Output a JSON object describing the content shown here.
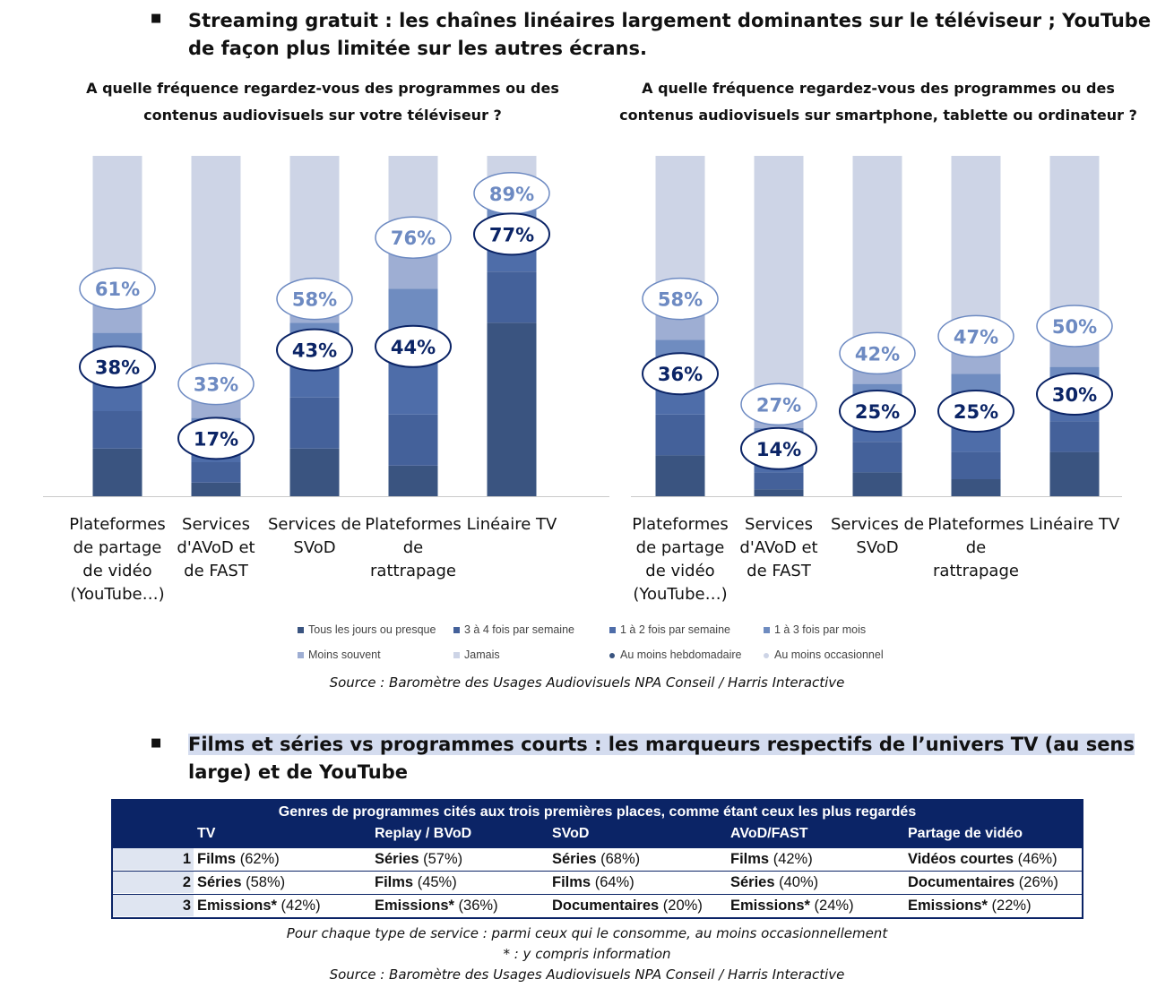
{
  "section1": {
    "heading_line1": "Streaming gratuit : les chaînes linéaires largement dominantes sur le téléviseur ; YouTube",
    "heading_line2": "de façon plus limitée sur les autres écrans."
  },
  "section2": {
    "heading_line1": "Films et séries vs programmes courts : les marqueurs respectifs de l’univers TV (au sens",
    "heading_line2": "large) et de YouTube"
  },
  "colors": {
    "daily": "#3a5480",
    "w34": "#44619a",
    "w12": "#4e6da9",
    "month13": "#6f8cc0",
    "less": "#9eaed3",
    "never": "#cdd4e6",
    "dark_ring": "#0b2466",
    "light_ring": "#6d8ac2"
  },
  "legend": [
    {
      "label": "Tous les jours ou presque",
      "color": "#3a5480",
      "kind": "square"
    },
    {
      "label": "3 à 4 fois par semaine",
      "color": "#44619a",
      "kind": "square"
    },
    {
      "label": "1 à 2 fois par semaine",
      "color": "#4e6da9",
      "kind": "square"
    },
    {
      "label": "1 à 3 fois par mois",
      "color": "#6f8cc0",
      "kind": "square"
    },
    {
      "label": "Moins souvent",
      "color": "#9eaed3",
      "kind": "square"
    },
    {
      "label": "Jamais",
      "color": "#cdd4e6",
      "kind": "square"
    },
    {
      "label": "Au moins hebdomadaire",
      "color": "#3a5480",
      "kind": "dot"
    },
    {
      "label": "Au moins occasionnel",
      "color": "#cdd4e6",
      "kind": "dot"
    }
  ],
  "source1": "Source : Baromètre des Usages Audiovisuels NPA Conseil / Harris Interactive",
  "chart_data": [
    {
      "type": "bar",
      "stacked": true,
      "title_line1": "A quelle fréquence regardez-vous des programmes ou des",
      "title_line2": "contenus audiovisuels sur votre téléviseur ?",
      "categories": [
        [
          "Plateformes",
          "de partage",
          "de vidéo",
          "(YouTube…)"
        ],
        [
          "Services",
          "d'AVoD et",
          "de FAST"
        ],
        [
          "Services de",
          "SVoD"
        ],
        [
          "Plateformes",
          "de",
          "rattrapage"
        ],
        [
          "Linéaire TV"
        ]
      ],
      "series": [
        {
          "name": "Tous les jours ou presque",
          "values": [
            14,
            4,
            14,
            9,
            51
          ]
        },
        {
          "name": "3 à 4 fois par semaine",
          "values": [
            11,
            6,
            15,
            15,
            15
          ]
        },
        {
          "name": "1 à 2 fois par semaine",
          "values": [
            13,
            7,
            14,
            20,
            11
          ]
        },
        {
          "name": "1 à 3 fois par mois",
          "values": [
            10,
            6,
            8,
            17,
            8
          ]
        },
        {
          "name": "Moins souvent",
          "values": [
            13,
            10,
            7,
            15,
            4
          ]
        },
        {
          "name": "Jamais",
          "values": [
            39,
            67,
            42,
            24,
            11
          ]
        }
      ],
      "weekly_labels": [
        "38%",
        "17%",
        "43%",
        "44%",
        "77%"
      ],
      "occasional_labels": [
        "61%",
        "33%",
        "58%",
        "76%",
        "89%"
      ],
      "weekly_values": [
        38,
        17,
        43,
        44,
        77
      ],
      "occasional_values": [
        61,
        33,
        58,
        76,
        89
      ],
      "ylim": [
        0,
        100
      ]
    },
    {
      "type": "bar",
      "stacked": true,
      "title_line1": "A quelle fréquence regardez-vous des programmes ou des",
      "title_line2": "contenus audiovisuels sur smartphone, tablette ou ordinateur ?",
      "categories": [
        [
          "Plateformes",
          "de partage",
          "de vidéo",
          "(YouTube…)"
        ],
        [
          "Services",
          "d'AVoD et",
          "de FAST"
        ],
        [
          "Services de",
          "SVoD"
        ],
        [
          "Plateformes",
          "de",
          "rattrapage"
        ],
        [
          "Linéaire TV"
        ]
      ],
      "series": [
        {
          "name": "Tous les jours ou presque",
          "values": [
            12,
            2,
            7,
            5,
            13
          ]
        },
        {
          "name": "3 à 4 fois par semaine",
          "values": [
            12,
            5,
            9,
            8,
            9
          ]
        },
        {
          "name": "1 à 2 fois par semaine",
          "values": [
            12,
            7,
            9,
            12,
            8
          ]
        },
        {
          "name": "1 à 3 fois par mois",
          "values": [
            10,
            6,
            8,
            11,
            8
          ]
        },
        {
          "name": "Moins souvent",
          "values": [
            12,
            7,
            9,
            11,
            12
          ]
        },
        {
          "name": "Jamais",
          "values": [
            42,
            73,
            58,
            53,
            50
          ]
        }
      ],
      "weekly_labels": [
        "36%",
        "14%",
        "25%",
        "25%",
        "30%"
      ],
      "occasional_labels": [
        "58%",
        "27%",
        "42%",
        "47%",
        "50%"
      ],
      "weekly_values": [
        36,
        14,
        25,
        25,
        30
      ],
      "occasional_values": [
        58,
        27,
        42,
        47,
        50
      ],
      "ylim": [
        0,
        100
      ]
    },
    {
      "type": "table",
      "title": "Genres de programmes cités aux trois premières places, comme étant ceux les plus regardés",
      "columns": [
        "TV",
        "Replay / BVoD",
        "SVoD",
        "AVoD/FAST",
        "Partage de vidéo"
      ],
      "rows": [
        {
          "rank": "1",
          "cells": [
            [
              "Films",
              " (62%)"
            ],
            [
              "Séries",
              " (57%)"
            ],
            [
              "Séries",
              " (68%)"
            ],
            [
              "Films",
              " (42%)"
            ],
            [
              "Vidéos courtes",
              " (46%)"
            ]
          ]
        },
        {
          "rank": "2",
          "cells": [
            [
              "Séries",
              " (58%)"
            ],
            [
              "Films",
              " (45%)"
            ],
            [
              "Films",
              " (64%)"
            ],
            [
              "Séries",
              " (40%)"
            ],
            [
              "Documentaires",
              " (26%)"
            ]
          ]
        },
        {
          "rank": "3",
          "cells": [
            [
              "Emissions*",
              " (42%)"
            ],
            [
              "Emissions*",
              " (36%)"
            ],
            [
              "Documentaires",
              " (20%)"
            ],
            [
              "Emissions*",
              " (24%)"
            ],
            [
              "Emissions*",
              " (22%)"
            ]
          ]
        }
      ]
    }
  ],
  "table_note1": "Pour chaque type de service : parmi ceux qui le consomme, au moins occasionnellement",
  "table_note2": "* : y compris information",
  "source2": "Source : Baromètre des Usages Audiovisuels NPA Conseil / Harris Interactive"
}
